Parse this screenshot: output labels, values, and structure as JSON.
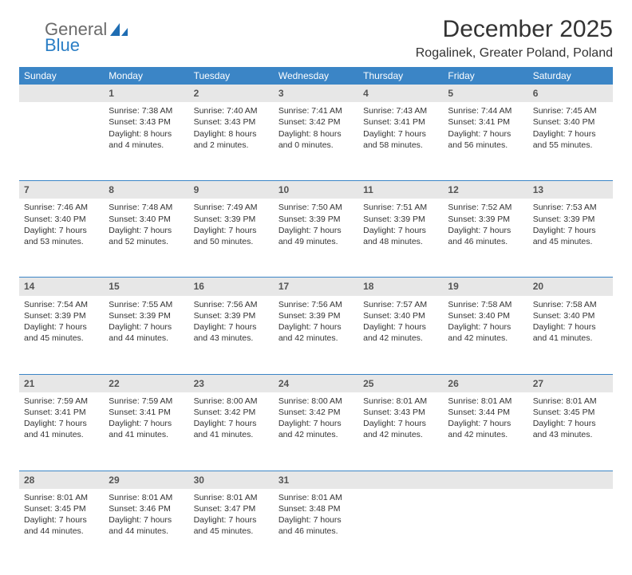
{
  "brand": {
    "word1": "General",
    "word2": "Blue"
  },
  "title": "December 2025",
  "location": "Rogalinek, Greater Poland, Poland",
  "colors": {
    "header_bg": "#3b85c6",
    "header_text": "#ffffff",
    "daynum_bg": "#e7e7e7",
    "rule": "#3b85c6",
    "logo_gray": "#6b6b6b",
    "logo_blue": "#2a7ec5"
  },
  "day_headers": [
    "Sunday",
    "Monday",
    "Tuesday",
    "Wednesday",
    "Thursday",
    "Friday",
    "Saturday"
  ],
  "weeks": [
    [
      null,
      {
        "n": "1",
        "sr": "7:38 AM",
        "ss": "3:43 PM",
        "dl": "8 hours and 4 minutes."
      },
      {
        "n": "2",
        "sr": "7:40 AM",
        "ss": "3:43 PM",
        "dl": "8 hours and 2 minutes."
      },
      {
        "n": "3",
        "sr": "7:41 AM",
        "ss": "3:42 PM",
        "dl": "8 hours and 0 minutes."
      },
      {
        "n": "4",
        "sr": "7:43 AM",
        "ss": "3:41 PM",
        "dl": "7 hours and 58 minutes."
      },
      {
        "n": "5",
        "sr": "7:44 AM",
        "ss": "3:41 PM",
        "dl": "7 hours and 56 minutes."
      },
      {
        "n": "6",
        "sr": "7:45 AM",
        "ss": "3:40 PM",
        "dl": "7 hours and 55 minutes."
      }
    ],
    [
      {
        "n": "7",
        "sr": "7:46 AM",
        "ss": "3:40 PM",
        "dl": "7 hours and 53 minutes."
      },
      {
        "n": "8",
        "sr": "7:48 AM",
        "ss": "3:40 PM",
        "dl": "7 hours and 52 minutes."
      },
      {
        "n": "9",
        "sr": "7:49 AM",
        "ss": "3:39 PM",
        "dl": "7 hours and 50 minutes."
      },
      {
        "n": "10",
        "sr": "7:50 AM",
        "ss": "3:39 PM",
        "dl": "7 hours and 49 minutes."
      },
      {
        "n": "11",
        "sr": "7:51 AM",
        "ss": "3:39 PM",
        "dl": "7 hours and 48 minutes."
      },
      {
        "n": "12",
        "sr": "7:52 AM",
        "ss": "3:39 PM",
        "dl": "7 hours and 46 minutes."
      },
      {
        "n": "13",
        "sr": "7:53 AM",
        "ss": "3:39 PM",
        "dl": "7 hours and 45 minutes."
      }
    ],
    [
      {
        "n": "14",
        "sr": "7:54 AM",
        "ss": "3:39 PM",
        "dl": "7 hours and 45 minutes."
      },
      {
        "n": "15",
        "sr": "7:55 AM",
        "ss": "3:39 PM",
        "dl": "7 hours and 44 minutes."
      },
      {
        "n": "16",
        "sr": "7:56 AM",
        "ss": "3:39 PM",
        "dl": "7 hours and 43 minutes."
      },
      {
        "n": "17",
        "sr": "7:56 AM",
        "ss": "3:39 PM",
        "dl": "7 hours and 42 minutes."
      },
      {
        "n": "18",
        "sr": "7:57 AM",
        "ss": "3:40 PM",
        "dl": "7 hours and 42 minutes."
      },
      {
        "n": "19",
        "sr": "7:58 AM",
        "ss": "3:40 PM",
        "dl": "7 hours and 42 minutes."
      },
      {
        "n": "20",
        "sr": "7:58 AM",
        "ss": "3:40 PM",
        "dl": "7 hours and 41 minutes."
      }
    ],
    [
      {
        "n": "21",
        "sr": "7:59 AM",
        "ss": "3:41 PM",
        "dl": "7 hours and 41 minutes."
      },
      {
        "n": "22",
        "sr": "7:59 AM",
        "ss": "3:41 PM",
        "dl": "7 hours and 41 minutes."
      },
      {
        "n": "23",
        "sr": "8:00 AM",
        "ss": "3:42 PM",
        "dl": "7 hours and 41 minutes."
      },
      {
        "n": "24",
        "sr": "8:00 AM",
        "ss": "3:42 PM",
        "dl": "7 hours and 42 minutes."
      },
      {
        "n": "25",
        "sr": "8:01 AM",
        "ss": "3:43 PM",
        "dl": "7 hours and 42 minutes."
      },
      {
        "n": "26",
        "sr": "8:01 AM",
        "ss": "3:44 PM",
        "dl": "7 hours and 42 minutes."
      },
      {
        "n": "27",
        "sr": "8:01 AM",
        "ss": "3:45 PM",
        "dl": "7 hours and 43 minutes."
      }
    ],
    [
      {
        "n": "28",
        "sr": "8:01 AM",
        "ss": "3:45 PM",
        "dl": "7 hours and 44 minutes."
      },
      {
        "n": "29",
        "sr": "8:01 AM",
        "ss": "3:46 PM",
        "dl": "7 hours and 44 minutes."
      },
      {
        "n": "30",
        "sr": "8:01 AM",
        "ss": "3:47 PM",
        "dl": "7 hours and 45 minutes."
      },
      {
        "n": "31",
        "sr": "8:01 AM",
        "ss": "3:48 PM",
        "dl": "7 hours and 46 minutes."
      },
      null,
      null,
      null
    ]
  ],
  "labels": {
    "sunrise": "Sunrise: ",
    "sunset": "Sunset: ",
    "daylight": "Daylight: "
  }
}
